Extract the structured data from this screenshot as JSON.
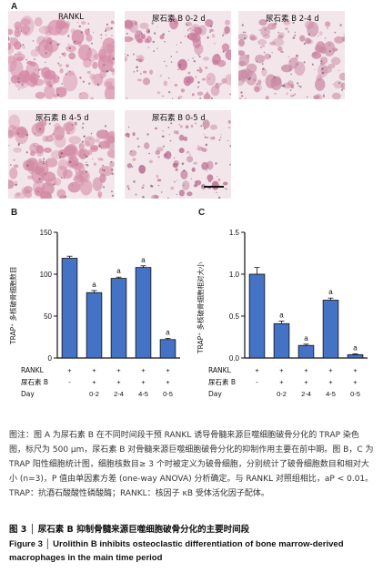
{
  "panel_a": {
    "label": "A",
    "images": [
      {
        "label": "RANKL",
        "tint": "#d58aa6",
        "density": 0.85
      },
      {
        "label": "尿石素 B 0-2 d",
        "tint": "#c97a9b",
        "density": 0.45
      },
      {
        "label": "尿石素 B 2-4 d",
        "tint": "#c98aa3",
        "density": 0.6
      },
      {
        "label": "尿石素 B 4-5 d",
        "tint": "#d38aa4",
        "density": 0.75
      },
      {
        "label": "尿石素 B 0-5 d",
        "tint": "#b86b8e",
        "density": 0.25
      }
    ]
  },
  "chart_data": [
    {
      "panel": "B",
      "type": "bar",
      "ylabel": "TRAP⁺ 多核破骨细胞数目",
      "ylim": [
        0,
        150
      ],
      "yticks": [
        "0",
        "50",
        "100",
        "150"
      ],
      "categories": [
        "RANKL",
        "0-2",
        "2-4",
        "4-5",
        "0-5"
      ],
      "values": [
        119,
        78,
        95,
        108,
        22
      ],
      "errors": [
        2.5,
        2.5,
        1.5,
        2.0,
        1.5
      ],
      "annotations": [
        "",
        "a",
        "a",
        "a",
        "a"
      ],
      "bar_color": "#4472c4"
    },
    {
      "panel": "C",
      "type": "bar",
      "ylabel": "TRAP⁺ 多核破骨细胞相对大小",
      "ylim": [
        0,
        1.5
      ],
      "yticks": [
        "0.0",
        "0.5",
        "1.0",
        "1.5"
      ],
      "categories": [
        "RANKL",
        "0-2",
        "2-4",
        "4-5",
        "0-5"
      ],
      "values": [
        1.0,
        0.41,
        0.15,
        0.69,
        0.04
      ],
      "errors": [
        0.08,
        0.03,
        0.015,
        0.025,
        0.01
      ],
      "annotations": [
        "",
        "a",
        "a",
        "a",
        "a"
      ],
      "bar_color": "#4472c4"
    }
  ],
  "treatment_table": {
    "row_labels": [
      "RANKL",
      "尿石素 B",
      "Day"
    ],
    "rankl": [
      "+",
      "+",
      "+",
      "+",
      "+"
    ],
    "urolithin": [
      "-",
      "+",
      "+",
      "+",
      "+"
    ],
    "day": [
      "",
      "0-2",
      "2-4",
      "4-5",
      "0-5"
    ]
  },
  "caption": "图注：图 A 为尿石素 B 在不同时间段干预 RANKL 诱导骨髓来源巨噬细胞破骨分化的 TRAP 染色图，标尺为 500 μm，尿石素 B 对骨髓来源巨噬细胞破骨分化的抑制作用主要在前中期。图 B，C 为 TRAP 阳性细胞统计图，细胞核数目≥ 3 个时被定义为破骨细胞，分别统计了破骨细胞数目和相对大小 (n=3)，P 值由单因素方差 (one-way ANOVA) 分析确定。与 RANKL 对照组相比，aP < 0.01。TRAP：抗酒石酸酸性磷酸酶；RANKL：核因子 κB 受体活化因子配体。",
  "figure_title_zh": "图 3 │ 尿石素 B 抑制骨髓来源巨噬细胞破骨分化的主要时间段",
  "figure_title_en": "Figure 3 │ Urolithin B inhibits osteoclastic differentiation of bone marrow-derived macrophages in the main time period"
}
